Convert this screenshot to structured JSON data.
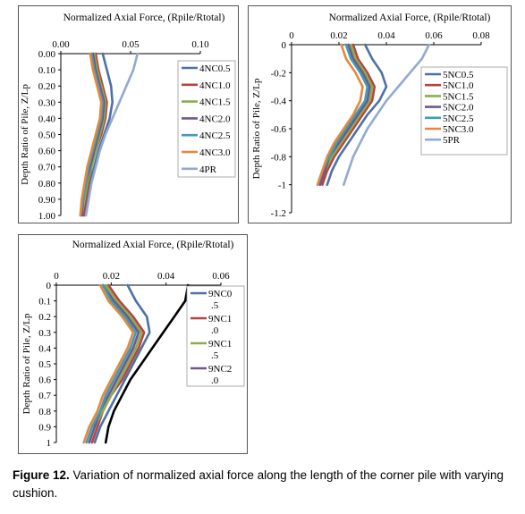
{
  "figure": {
    "caption_label": "Figure 12.",
    "caption_text": " Variation of normalized axial force along the length of the corner pile with varying cushion."
  },
  "chart_data": [
    {
      "type": "line",
      "title": "Normalized Axial Force, (Rpile/Rtotal)",
      "xlabel": "Normalized Axial Force, (Rpile/Rtotal)",
      "ylabel": "Depth Ratio of Pile, Z/Lp",
      "xlim": [
        0,
        0.1
      ],
      "ylim": [
        0,
        1.0
      ],
      "x_ticks": [
        "0.00",
        "0.05",
        "0.10"
      ],
      "y_ticks": [
        "0.00",
        "0.10",
        "0.20",
        "0.30",
        "0.40",
        "0.50",
        "0.60",
        "0.70",
        "0.80",
        "0.90",
        "1.00"
      ],
      "y_inverted": true,
      "x_axis_position": "top",
      "legend_position": "right",
      "depth": [
        0,
        0.1,
        0.2,
        0.3,
        0.4,
        0.5,
        0.6,
        0.7,
        0.8,
        0.9,
        1.0
      ],
      "series": [
        {
          "name": "4NC0.5",
          "color": "#4a71a8",
          "values": [
            0.03,
            0.033,
            0.036,
            0.037,
            0.035,
            0.031,
            0.027,
            0.024,
            0.021,
            0.019,
            0.017
          ]
        },
        {
          "name": "4NC1.0",
          "color": "#b5443f",
          "values": [
            0.025,
            0.027,
            0.03,
            0.033,
            0.032,
            0.029,
            0.025,
            0.022,
            0.02,
            0.018,
            0.016
          ]
        },
        {
          "name": "4NC1.5",
          "color": "#8cad4a",
          "values": [
            0.024,
            0.026,
            0.029,
            0.032,
            0.031,
            0.028,
            0.025,
            0.022,
            0.019,
            0.017,
            0.015
          ]
        },
        {
          "name": "4NC2.0",
          "color": "#6f5791",
          "values": [
            0.023,
            0.025,
            0.028,
            0.031,
            0.03,
            0.027,
            0.024,
            0.021,
            0.018,
            0.016,
            0.015
          ]
        },
        {
          "name": "4NC2.5",
          "color": "#3e9cb3",
          "values": [
            0.022,
            0.024,
            0.027,
            0.03,
            0.029,
            0.026,
            0.023,
            0.02,
            0.018,
            0.016,
            0.014
          ]
        },
        {
          "name": "4NC3.0",
          "color": "#e8863a",
          "values": [
            0.021,
            0.023,
            0.026,
            0.029,
            0.028,
            0.025,
            0.022,
            0.019,
            0.017,
            0.015,
            0.014
          ]
        },
        {
          "name": "4PR",
          "color": "#92a9d0",
          "values": [
            0.055,
            0.052,
            0.047,
            0.042,
            0.037,
            0.032,
            0.028,
            0.025,
            0.022,
            0.02,
            0.018
          ]
        }
      ]
    },
    {
      "type": "line",
      "title": "Normalized Axial Force, (Rpile/Rtotal)",
      "xlabel": "Normalized Axial Force, (Rpile/Rtotal)",
      "ylabel": "Depth Ratio of Pile, Z/Lp",
      "xlim": [
        0,
        0.08
      ],
      "ylim": [
        -1.2,
        0
      ],
      "x_ticks": [
        "0",
        "0.02",
        "0.04",
        "0.06",
        "0.08"
      ],
      "y_ticks": [
        "0",
        "-0.2",
        "-0.4",
        "-0.6",
        "-0.8",
        "-1",
        "-1.2"
      ],
      "y_inverted": false,
      "x_axis_position": "top",
      "legend_position": "right",
      "depth": [
        0,
        -0.1,
        -0.2,
        -0.3,
        -0.4,
        -0.5,
        -0.6,
        -0.7,
        -0.8,
        -0.9,
        -1.0
      ],
      "series": [
        {
          "name": "5NC0.5",
          "color": "#4a71a8",
          "values": [
            0.031,
            0.034,
            0.038,
            0.04,
            0.037,
            0.032,
            0.028,
            0.024,
            0.02,
            0.017,
            0.015
          ]
        },
        {
          "name": "5NC1.0",
          "color": "#b5443f",
          "values": [
            0.026,
            0.028,
            0.032,
            0.035,
            0.034,
            0.03,
            0.026,
            0.022,
            0.018,
            0.015,
            0.013
          ]
        },
        {
          "name": "5NC1.5",
          "color": "#8cad4a",
          "values": [
            0.025,
            0.027,
            0.031,
            0.034,
            0.033,
            0.029,
            0.025,
            0.021,
            0.017,
            0.014,
            0.012
          ]
        },
        {
          "name": "5NC2.0",
          "color": "#6f5791",
          "values": [
            0.024,
            0.026,
            0.03,
            0.033,
            0.032,
            0.028,
            0.024,
            0.02,
            0.016,
            0.014,
            0.012
          ]
        },
        {
          "name": "5NC2.5",
          "color": "#3e9cb3",
          "values": [
            0.023,
            0.025,
            0.029,
            0.032,
            0.031,
            0.027,
            0.023,
            0.019,
            0.016,
            0.013,
            0.011
          ]
        },
        {
          "name": "5NC3.0",
          "color": "#e8863a",
          "values": [
            0.021,
            0.023,
            0.027,
            0.03,
            0.029,
            0.026,
            0.022,
            0.018,
            0.015,
            0.013,
            0.011
          ]
        },
        {
          "name": "5PR",
          "color": "#92a9d0",
          "values": [
            0.058,
            0.055,
            0.05,
            0.045,
            0.04,
            0.036,
            0.032,
            0.029,
            0.026,
            0.024,
            0.022
          ]
        }
      ]
    },
    {
      "type": "line",
      "title": "Normalized Axial Force, (Rpile/Rtotal)",
      "xlabel": "Normalized Axial Force, (Rpile/Rtotal)",
      "ylabel": "Depth Ratio of Pile, Z/Lp",
      "xlim": [
        0,
        0.06
      ],
      "ylim": [
        0,
        1
      ],
      "x_ticks": [
        "0",
        "0.02",
        "0.04",
        "0.06"
      ],
      "y_ticks": [
        "0",
        "0.1",
        "0.2",
        "0.3",
        "0.4",
        "0.5",
        "0.6",
        "0.7",
        "0.8",
        "0.9",
        "1"
      ],
      "y_inverted": true,
      "x_axis_position": "top",
      "legend_position": "right",
      "depth": [
        0,
        0.1,
        0.2,
        0.3,
        0.4,
        0.5,
        0.6,
        0.7,
        0.8,
        0.9,
        1.0
      ],
      "series": [
        {
          "name": "9NC0.5",
          "legend_lines": [
            "9NC0",
            ".5"
          ],
          "color": "#4a71a8",
          "values": [
            0.026,
            0.029,
            0.033,
            0.034,
            0.031,
            0.028,
            0.025,
            0.022,
            0.019,
            0.016,
            0.014
          ]
        },
        {
          "name": "9NC1.0",
          "legend_lines": [
            "9NC1",
            ".0"
          ],
          "color": "#b5443f",
          "values": [
            0.019,
            0.023,
            0.028,
            0.032,
            0.03,
            0.027,
            0.024,
            0.02,
            0.017,
            0.015,
            0.013
          ]
        },
        {
          "name": "9NC1.5",
          "legend_lines": [
            "9NC1",
            ".5"
          ],
          "color": "#8cad4a",
          "values": [
            0.018,
            0.022,
            0.027,
            0.031,
            0.029,
            0.026,
            0.023,
            0.02,
            0.017,
            0.014,
            0.012
          ]
        },
        {
          "name": "9NC2.0",
          "legend_lines": [
            "9NC2",
            ".0"
          ],
          "color": "#6f5791",
          "values": [
            0.017,
            0.021,
            0.026,
            0.03,
            0.028,
            0.025,
            0.022,
            0.019,
            0.016,
            0.014,
            0.012
          ]
        },
        {
          "name": "",
          "color": "#3e9cb3",
          "values": [
            0.017,
            0.02,
            0.025,
            0.029,
            0.027,
            0.024,
            0.021,
            0.018,
            0.016,
            0.013,
            0.011
          ]
        },
        {
          "name": "",
          "color": "#e8863a",
          "values": [
            0.016,
            0.019,
            0.024,
            0.028,
            0.026,
            0.023,
            0.02,
            0.017,
            0.015,
            0.012,
            0.01
          ]
        },
        {
          "name": "",
          "color": "#000000",
          "values": [
            0.048,
            0.047,
            0.043,
            0.039,
            0.035,
            0.031,
            0.027,
            0.024,
            0.021,
            0.019,
            0.018
          ]
        }
      ]
    }
  ]
}
